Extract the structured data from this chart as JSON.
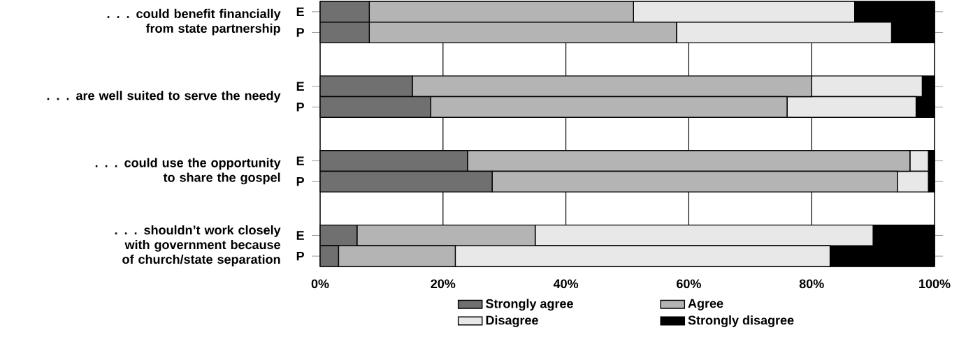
{
  "chart_data": {
    "type": "bar",
    "orientation": "horizontal",
    "stacked": true,
    "categories": [
      "E",
      "P",
      "E",
      "P",
      "E",
      "P",
      "E",
      "P"
    ],
    "series": [
      {
        "name": "Strongly agree",
        "color": "#707070",
        "values": [
          8,
          8,
          15,
          18,
          24,
          28,
          6,
          3
        ]
      },
      {
        "name": "Agree",
        "color": "#b4b4b4",
        "values": [
          43,
          50,
          65,
          58,
          72,
          66,
          29,
          19
        ]
      },
      {
        "name": "Disagree",
        "color": "#e8e8e8",
        "values": [
          36,
          35,
          18,
          21,
          3,
          5,
          55,
          61
        ]
      },
      {
        "name": "Strongly disagree",
        "color": "#000000",
        "values": [
          13,
          7,
          2,
          3,
          1,
          1,
          10,
          17
        ]
      }
    ],
    "xlim": [
      0,
      100
    ],
    "xticks": [
      {
        "value": 0,
        "label": "0%"
      },
      {
        "value": 20,
        "label": "20%"
      },
      {
        "value": 40,
        "label": "40%"
      },
      {
        "value": 60,
        "label": "60%"
      },
      {
        "value": 80,
        "label": "80%"
      },
      {
        "value": 100,
        "label": "100%"
      }
    ],
    "grid": "x",
    "legend": "bottom",
    "annotations": [
      ". . . could benefit financially from state partnership",
      ". . . are well suited to serve the needy",
      ". . . could use the opportunity to share the gospel",
      ". . . shouldn’t work closely with government because of church/state separation"
    ]
  }
}
